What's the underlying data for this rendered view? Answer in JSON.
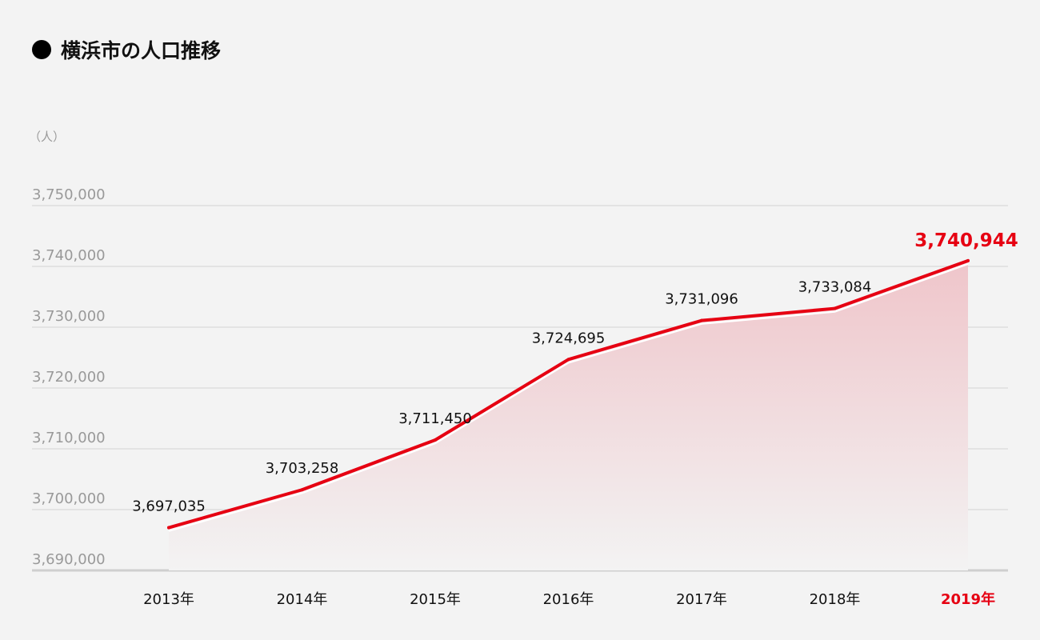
{
  "chart_data": {
    "type": "area",
    "title": "横浜市の人口推移",
    "ylabel": "（人）",
    "categories": [
      "2013年",
      "2014年",
      "2015年",
      "2016年",
      "2017年",
      "2018年",
      "2019年"
    ],
    "values": [
      3697035,
      3703258,
      3711450,
      3724695,
      3731096,
      3733084,
      3740944
    ],
    "data_labels": [
      "3,697,035",
      "3,703,258",
      "3,711,450",
      "3,724,695",
      "3,731,096",
      "3,733,084",
      "3,740,944"
    ],
    "ylim": [
      3690000,
      3750000
    ],
    "yticks": [
      3690000,
      3700000,
      3710000,
      3720000,
      3730000,
      3740000,
      3750000
    ],
    "ytick_labels": [
      "3,690,000",
      "3,700,000",
      "3,710,000",
      "3,720,000",
      "3,730,000",
      "3,740,000",
      "3,750,000"
    ],
    "grid": true,
    "highlight_last": true,
    "colors": {
      "line": "#e60012",
      "fill": "#efc5ca",
      "grid": "#d9d9d9",
      "axis_text": "#999999",
      "highlight": "#e60012"
    }
  }
}
